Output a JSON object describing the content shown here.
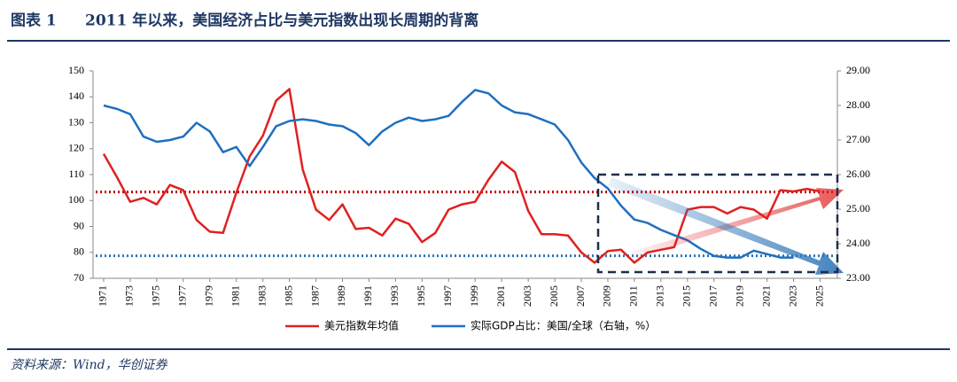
{
  "figure_label": "图表 1",
  "source": "资料来源：Wind，华创证券",
  "chart_data": {
    "type": "line",
    "title": "2011 年以来，美国经济占比与美元指数出现长周期的背离",
    "x": [
      1971,
      1972,
      1973,
      1974,
      1975,
      1976,
      1977,
      1978,
      1979,
      1980,
      1981,
      1982,
      1983,
      1984,
      1985,
      1986,
      1987,
      1988,
      1989,
      1990,
      1991,
      1992,
      1993,
      1994,
      1995,
      1996,
      1997,
      1998,
      1999,
      2000,
      2001,
      2002,
      2003,
      2004,
      2005,
      2006,
      2007,
      2008,
      2009,
      2010,
      2011,
      2012,
      2013,
      2014,
      2015,
      2016,
      2017,
      2018,
      2019,
      2020,
      2021,
      2022,
      2023,
      2024,
      2025
    ],
    "xlim": [
      1970.2,
      2026.3
    ],
    "xticks": [
      1971,
      1973,
      1975,
      1977,
      1979,
      1981,
      1983,
      1985,
      1987,
      1989,
      1991,
      1993,
      1995,
      1997,
      1999,
      2001,
      2003,
      2005,
      2007,
      2009,
      2011,
      2013,
      2015,
      2017,
      2019,
      2021,
      2023,
      2025
    ],
    "ylim": [
      70,
      150
    ],
    "yticks": [
      70,
      80,
      90,
      100,
      110,
      120,
      130,
      140,
      150
    ],
    "y2lim": [
      23,
      29
    ],
    "y2ticks": [
      {
        "value": 23,
        "label": "23.00"
      },
      {
        "value": 24,
        "label": "24.00"
      },
      {
        "value": 25,
        "label": "25.00"
      },
      {
        "value": 26,
        "label": "26.00"
      },
      {
        "value": 27,
        "label": "27.00"
      },
      {
        "value": 28,
        "label": "28.00"
      },
      {
        "value": 29,
        "label": "29.00"
      }
    ],
    "series": [
      {
        "name": "美元指数年均值",
        "color": "#e02020",
        "values": [
          118,
          109,
          99.5,
          101,
          98.5,
          106,
          104,
          92.5,
          88,
          87.5,
          103,
          117,
          125,
          138.5,
          143,
          112,
          96.5,
          92.5,
          98.5,
          89,
          89.5,
          86.5,
          93,
          91,
          84,
          87.5,
          96.5,
          98.5,
          99.5,
          108,
          115,
          111,
          96,
          87,
          87,
          86.5,
          80,
          76,
          80.5,
          81,
          76,
          80,
          81,
          82,
          96.5,
          97.5,
          97.5,
          95,
          97.5,
          96.5,
          93,
          104,
          103.5,
          104.5,
          103.5
        ]
      },
      {
        "name": "实际GDP占比：美国/全球（右轴，%）",
        "color": "#1f6fbf",
        "axis": "y2",
        "values": [
          28.0,
          27.9,
          27.75,
          27.1,
          26.95,
          27.0,
          27.1,
          27.5,
          27.25,
          26.65,
          26.8,
          26.25,
          26.8,
          27.4,
          27.55,
          27.6,
          27.55,
          27.45,
          27.4,
          27.2,
          26.85,
          27.25,
          27.5,
          27.65,
          27.55,
          27.6,
          27.7,
          28.1,
          28.45,
          28.35,
          28.0,
          27.8,
          27.75,
          27.6,
          27.45,
          27.0,
          26.35,
          25.9,
          25.6,
          25.1,
          24.7,
          24.6,
          24.4,
          24.25,
          24.1,
          23.85,
          23.65,
          23.6,
          23.6,
          23.8,
          23.7,
          23.6,
          23.6,
          null,
          null
        ]
      }
    ],
    "reference_lines": [
      {
        "value": 103.3,
        "color": "#c00000"
      },
      {
        "value": 23.65,
        "color": "#2e75b6",
        "axis": "y2"
      }
    ],
    "legend": "bottom"
  }
}
